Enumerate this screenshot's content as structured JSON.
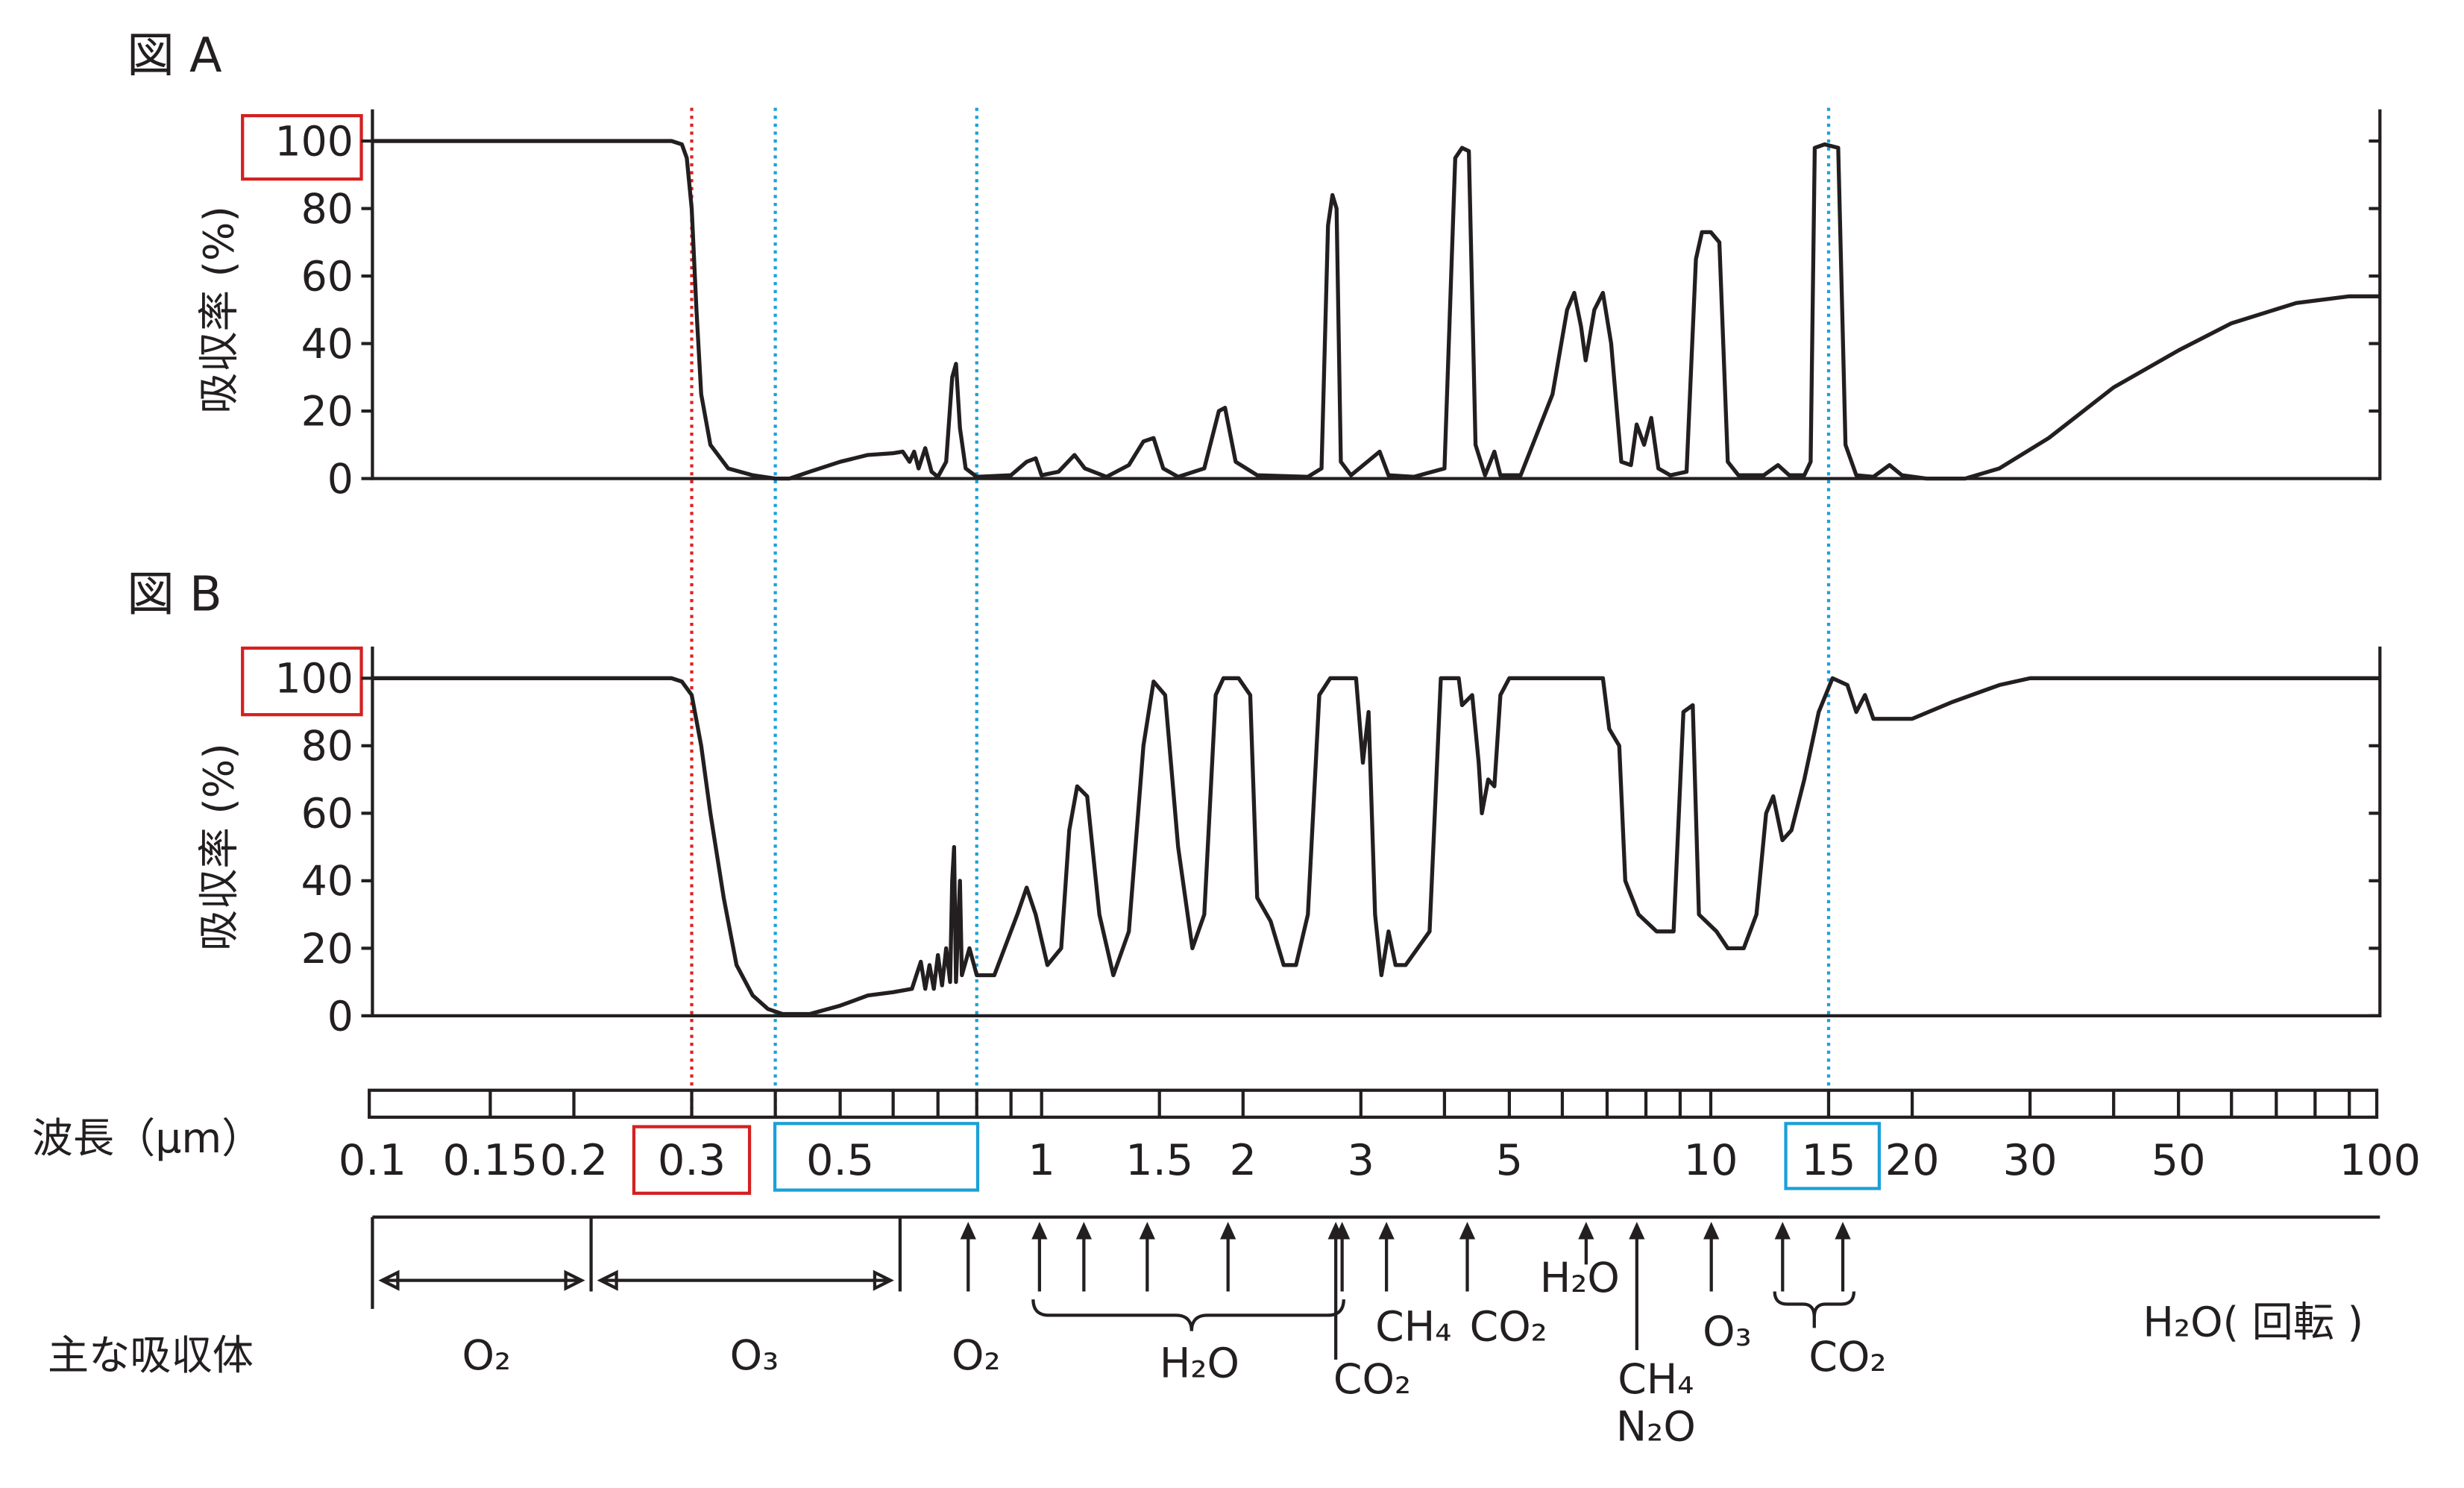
{
  "chart_data": [
    {
      "type": "line",
      "title": "図 A",
      "ylabel": "吸収率 (%)",
      "log_x": true,
      "xlim": [
        0.1,
        100
      ],
      "ylim": [
        0,
        100
      ],
      "yticks": [
        0,
        20,
        40,
        60,
        80,
        100
      ],
      "color": "#231f20",
      "x": [
        0.1,
        0.28,
        0.29,
        0.295,
        0.3,
        0.305,
        0.31,
        0.32,
        0.34,
        0.37,
        0.4,
        0.42,
        0.45,
        0.5,
        0.55,
        0.6,
        0.62,
        0.635,
        0.645,
        0.655,
        0.67,
        0.685,
        0.7,
        0.72,
        0.735,
        0.745,
        0.755,
        0.77,
        0.8,
        0.9,
        0.95,
        0.98,
        1.0,
        1.06,
        1.12,
        1.16,
        1.25,
        1.35,
        1.42,
        1.47,
        1.52,
        1.6,
        1.75,
        1.84,
        1.88,
        1.95,
        2.1,
        2.5,
        2.62,
        2.68,
        2.72,
        2.76,
        2.8,
        2.9,
        3.2,
        3.3,
        3.6,
        4.0,
        4.15,
        4.25,
        4.35,
        4.45,
        4.6,
        4.75,
        4.85,
        5.2,
        5.8,
        6.1,
        6.25,
        6.4,
        6.5,
        6.7,
        6.9,
        7.1,
        7.35,
        7.6,
        7.75,
        7.95,
        8.15,
        8.35,
        8.7,
        9.2,
        9.5,
        9.7,
        10,
        10.3,
        10.6,
        11,
        12,
        12.6,
        13.1,
        13.8,
        14.1,
        14.3,
        14.8,
        15.5,
        15.9,
        16.5,
        17.5,
        18.5,
        19.3,
        21,
        24,
        27,
        32,
        40,
        50,
        60,
        75,
        90,
        100
      ],
      "values": [
        100,
        100,
        99,
        95,
        80,
        50,
        25,
        10,
        3,
        1,
        0,
        0,
        2,
        5,
        7,
        7.5,
        8,
        5,
        8,
        3,
        9,
        2,
        0.5,
        5,
        30,
        34,
        15,
        3,
        0.5,
        1,
        5,
        6,
        1,
        2,
        7,
        3,
        0.5,
        4,
        11,
        12,
        3,
        0.5,
        3,
        20,
        21,
        5,
        1,
        0.5,
        3,
        75,
        84,
        80,
        5,
        1,
        8,
        1,
        0.5,
        3,
        95,
        98,
        97,
        10,
        1,
        8,
        1,
        1,
        25,
        50,
        55,
        45,
        35,
        50,
        55,
        40,
        5,
        4,
        16,
        10,
        18,
        3,
        1,
        2,
        65,
        73,
        73,
        70,
        5,
        1,
        1,
        4,
        1,
        1,
        5,
        98,
        99,
        98,
        10,
        1,
        0.5,
        4,
        1,
        0,
        0,
        3,
        12,
        27,
        38,
        46,
        52,
        54,
        54
      ]
    },
    {
      "type": "line",
      "title": "図 B",
      "ylabel": "吸収率 (%)",
      "log_x": true,
      "xlim": [
        0.1,
        100
      ],
      "ylim": [
        0,
        100
      ],
      "yticks": [
        0,
        20,
        40,
        60,
        80,
        100
      ],
      "color": "#231f20",
      "x": [
        0.1,
        0.28,
        0.29,
        0.3,
        0.31,
        0.32,
        0.335,
        0.35,
        0.37,
        0.39,
        0.41,
        0.45,
        0.5,
        0.55,
        0.6,
        0.64,
        0.65,
        0.66,
        0.67,
        0.68,
        0.69,
        0.7,
        0.71,
        0.72,
        0.73,
        0.735,
        0.74,
        0.745,
        0.755,
        0.76,
        0.78,
        0.8,
        0.85,
        0.92,
        0.95,
        0.98,
        1.02,
        1.07,
        1.1,
        1.13,
        1.17,
        1.22,
        1.28,
        1.35,
        1.42,
        1.47,
        1.53,
        1.6,
        1.68,
        1.75,
        1.82,
        1.87,
        1.97,
        2.05,
        2.1,
        2.2,
        2.3,
        2.4,
        2.5,
        2.6,
        2.7,
        2.95,
        3.02,
        3.08,
        3.15,
        3.22,
        3.3,
        3.38,
        3.5,
        3.8,
        3.95,
        4.2,
        4.25,
        4.4,
        4.5,
        4.55,
        4.65,
        4.75,
        4.85,
        5.0,
        6.0,
        6.9,
        7.05,
        7.3,
        7.45,
        7.8,
        8.3,
        8.8,
        9.1,
        9.4,
        9.6,
        10.2,
        10.6,
        11.2,
        11.7,
        12.1,
        12.4,
        12.8,
        13.2,
        13.8,
        14.5,
        15.2,
        16,
        16.5,
        17,
        17.5,
        18.5,
        20,
        23,
        27,
        30,
        100
      ],
      "values": [
        100,
        100,
        99,
        95,
        80,
        60,
        35,
        15,
        6,
        2,
        0.5,
        0.5,
        3,
        6,
        7,
        8,
        12,
        16,
        8,
        15,
        8,
        18,
        9,
        20,
        10,
        40,
        50,
        10,
        40,
        12,
        20,
        12,
        12,
        30,
        38,
        30,
        15,
        20,
        55,
        68,
        65,
        30,
        12,
        25,
        80,
        99,
        95,
        50,
        20,
        30,
        95,
        100,
        100,
        95,
        35,
        28,
        15,
        15,
        30,
        95,
        100,
        100,
        75,
        90,
        30,
        12,
        25,
        15,
        15,
        25,
        100,
        100,
        92,
        95,
        75,
        60,
        70,
        68,
        95,
        100,
        100,
        100,
        85,
        80,
        40,
        30,
        25,
        25,
        90,
        92,
        30,
        25,
        20,
        20,
        30,
        60,
        65,
        52,
        55,
        70,
        90,
        100,
        98,
        90,
        95,
        88,
        88,
        88,
        93,
        98,
        100,
        100
      ]
    }
  ],
  "wavelength_axis": {
    "label": "波長（μm）",
    "ticks": [
      0.15,
      0.2,
      0.3,
      0.4,
      0.5,
      0.6,
      0.7,
      0.8,
      0.9,
      1,
      1.5,
      2,
      3,
      4,
      5,
      6,
      7,
      8,
      9,
      10,
      15,
      20,
      30,
      40,
      50,
      60,
      70,
      80,
      90
    ],
    "labels": [
      0.1,
      0.15,
      0.2,
      0.3,
      0.5,
      1,
      1.5,
      2,
      3,
      5,
      10,
      15,
      20,
      30,
      50,
      100
    ]
  },
  "reference_lines": [
    {
      "x": 0.3,
      "color": "#e02020"
    },
    {
      "x": 0.4,
      "color": "#1aa0d8"
    },
    {
      "x": 0.8,
      "color": "#1aa0d8"
    },
    {
      "x": 15,
      "color": "#1aa0d8"
    }
  ],
  "absorbers": {
    "title": "主な吸収体",
    "labels": [
      "O₂",
      "O₃",
      "O₂",
      "H₂O",
      "CO₂",
      "CH₄",
      "CO₂",
      "H₂O",
      "CH₄",
      "N₂O",
      "O₃",
      "CO₂",
      "H₂O( 回転 )"
    ]
  }
}
